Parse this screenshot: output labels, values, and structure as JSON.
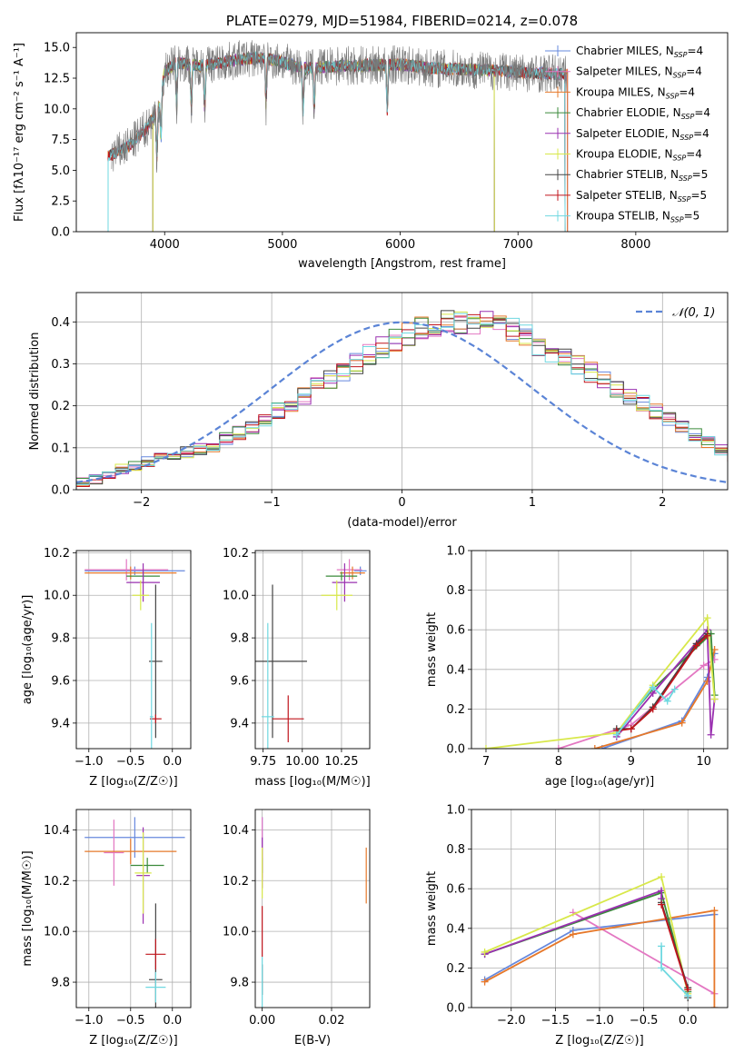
{
  "colors": {
    "Chabrier MILES": "#6688dd",
    "Salpeter MILES": "#e377c2",
    "Kroupa MILES": "#e6782a",
    "Chabrier ELODIE": "#3a8a3a",
    "Salpeter ELODIE": "#9a30b0",
    "Kroupa ELODIE": "#d8e84a",
    "Chabrier STELIB": "#444444",
    "Salpeter STELIB": "#c0141c",
    "Kroupa STELIB": "#6fd8e0",
    "normal": "#5b84d6"
  },
  "chart_data": [
    {
      "id": "spectrum",
      "type": "line",
      "title": "PLATE=0279, MJD=51984, FIBERID=0214, z=0.078",
      "xlabel": "wavelength [Angstrom, rest frame]",
      "ylabel": "Flux [fλ10⁻¹⁷ erg cm⁻² s⁻¹ A⁻¹]",
      "xlim": [
        3250,
        8780
      ],
      "ylim": [
        0,
        16.2
      ],
      "xticks": [
        4000,
        5000,
        6000,
        7000,
        8000
      ],
      "yticks": [
        0.0,
        2.5,
        5.0,
        7.5,
        10.0,
        12.5,
        15.0
      ],
      "legend": [
        "Chabrier MILES, N_SSP=4",
        "Salpeter MILES, N_SSP=4",
        "Kroupa MILES, N_SSP=4",
        "Chabrier ELODIE, N_SSP=4",
        "Salpeter ELODIE, N_SSP=4",
        "Kroupa ELODIE, N_SSP=4",
        "Chabrier STELIB, N_SSP=5",
        "Salpeter STELIB, N_SSP=5",
        "Kroupa STELIB, N_SSP=5"
      ],
      "legend_position": "right",
      "continuum": [
        [
          3550,
          6.2
        ],
        [
          3700,
          7.0
        ],
        [
          3850,
          8.5
        ],
        [
          3950,
          10.0
        ],
        [
          4000,
          13.0
        ],
        [
          4100,
          13.8
        ],
        [
          4300,
          13.5
        ],
        [
          4500,
          13.8
        ],
        [
          4800,
          14.2
        ],
        [
          5000,
          13.8
        ],
        [
          5200,
          13.3
        ],
        [
          5500,
          13.5
        ],
        [
          6000,
          13.6
        ],
        [
          6300,
          13.3
        ],
        [
          6600,
          13.2
        ],
        [
          7000,
          13.0
        ],
        [
          7400,
          12.8
        ]
      ],
      "model_ranges": [
        [
          3520,
          7420
        ],
        [
          3520,
          7420
        ],
        [
          3520,
          7420
        ],
        [
          3900,
          6800
        ],
        [
          3900,
          6800
        ],
        [
          3900,
          6800
        ],
        [
          3520,
          7400
        ],
        [
          3520,
          7400
        ],
        [
          3520,
          7400
        ]
      ],
      "data_range": [
        3550,
        7420
      ]
    },
    {
      "id": "residuals",
      "type": "area",
      "xlabel": "(data-model)/error",
      "ylabel": "Normed distribution",
      "xlim": [
        -2.5,
        2.5
      ],
      "ylim": [
        0,
        0.47
      ],
      "xticks": [
        -2,
        -1,
        0,
        1,
        2
      ],
      "yticks": [
        0.0,
        0.1,
        0.2,
        0.3,
        0.4
      ],
      "legend": "𝒩(0, 1)",
      "legend_position": "top-right",
      "bin_width": 0.1,
      "bin_start": -2.5,
      "histogram": [
        0.018,
        0.025,
        0.035,
        0.05,
        0.058,
        0.068,
        0.076,
        0.082,
        0.09,
        0.098,
        0.105,
        0.12,
        0.135,
        0.15,
        0.168,
        0.188,
        0.205,
        0.225,
        0.245,
        0.262,
        0.28,
        0.3,
        0.32,
        0.34,
        0.355,
        0.37,
        0.385,
        0.39,
        0.398,
        0.4,
        0.4,
        0.398,
        0.39,
        0.38,
        0.365,
        0.345,
        0.33,
        0.315,
        0.3,
        0.28,
        0.26,
        0.24,
        0.225,
        0.205,
        0.185,
        0.168,
        0.15,
        0.13,
        0.115,
        0.095,
        0.08,
        0.07,
        0.058,
        0.05,
        0.045,
        0.04,
        0.035,
        0.03,
        0.028,
        0.025
      ]
    },
    {
      "id": "age-vs-Z",
      "type": "scatter",
      "xlabel": "Z [log₁₀(Z/Z☉)]",
      "ylabel": "age  [log₁₀(age/yr)]",
      "xlim": [
        -1.15,
        0.22
      ],
      "ylim": [
        9.28,
        10.21
      ],
      "xticks": [
        -1.0,
        -0.5,
        0.0
      ],
      "yticks": [
        9.4,
        9.6,
        9.8,
        10.0,
        10.2
      ],
      "points": [
        {
          "model": "Chabrier MILES",
          "x": -0.45,
          "y": 10.115,
          "xerr": 0.6,
          "yerr": 0.02
        },
        {
          "model": "Salpeter MILES",
          "x": -0.55,
          "y": 10.12,
          "xerr": 0.5,
          "yerr": 0.05
        },
        {
          "model": "Kroupa MILES",
          "x": -0.5,
          "y": 10.105,
          "xerr": 0.55,
          "yerr": 0.03
        },
        {
          "model": "Chabrier ELODIE",
          "x": -0.35,
          "y": 10.09,
          "xerr": 0.2,
          "yerr": 0.02
        },
        {
          "model": "Salpeter ELODIE",
          "x": -0.35,
          "y": 10.06,
          "xerr": 0.2,
          "yerr": 0.09
        },
        {
          "model": "Kroupa ELODIE",
          "x": -0.38,
          "y": 10.0,
          "xerr": 0.1,
          "yerr": 0.07
        },
        {
          "model": "Chabrier STELIB",
          "x": -0.2,
          "y": 9.69,
          "xerr": 0.08,
          "yerr": 0.36
        },
        {
          "model": "Salpeter STELIB",
          "x": -0.2,
          "y": 9.42,
          "xerr": 0.07,
          "yerr": 0.02
        },
        {
          "model": "Kroupa STELIB",
          "x": -0.25,
          "y": 9.43,
          "xerr": 0.02,
          "yerr": 0.44
        }
      ]
    },
    {
      "id": "age-vs-mass",
      "type": "scatter",
      "xlabel": "mass [log₁₀(M/M☉)]",
      "ylabel": "",
      "xlim": [
        9.7,
        10.43
      ],
      "ylim": [
        9.28,
        10.21
      ],
      "xticks": [
        9.75,
        10.0,
        10.25
      ],
      "yticks": [
        9.4,
        9.6,
        9.8,
        10.0,
        10.2
      ],
      "points": [
        {
          "model": "Chabrier MILES",
          "x": 10.37,
          "y": 10.115,
          "xerr": 0.04,
          "yerr": 0.02
        },
        {
          "model": "Salpeter MILES",
          "x": 10.3,
          "y": 10.12,
          "xerr": 0.08,
          "yerr": 0.05
        },
        {
          "model": "Kroupa MILES",
          "x": 10.32,
          "y": 10.105,
          "xerr": 0.08,
          "yerr": 0.03
        },
        {
          "model": "Chabrier ELODIE",
          "x": 10.25,
          "y": 10.09,
          "xerr": 0.1,
          "yerr": 0.02
        },
        {
          "model": "Salpeter ELODIE",
          "x": 10.27,
          "y": 10.06,
          "xerr": 0.08,
          "yerr": 0.09
        },
        {
          "model": "Kroupa ELODIE",
          "x": 10.22,
          "y": 10.0,
          "xerr": 0.1,
          "yerr": 0.07
        },
        {
          "model": "Chabrier STELIB",
          "x": 9.81,
          "y": 9.69,
          "xerr": 0.22,
          "yerr": 0.36
        },
        {
          "model": "Salpeter STELIB",
          "x": 9.91,
          "y": 9.42,
          "xerr": 0.1,
          "yerr": 0.11
        },
        {
          "model": "Kroupa STELIB",
          "x": 9.78,
          "y": 9.43,
          "xerr": 0.04,
          "yerr": 0.44
        }
      ]
    },
    {
      "id": "massweight-vs-age",
      "type": "line",
      "xlabel": "age  [log₁₀(age/yr)]",
      "ylabel": "mass weight",
      "xlim": [
        6.8,
        10.33
      ],
      "ylim": [
        0,
        1.0
      ],
      "xticks": [
        7,
        8,
        9,
        10
      ],
      "yticks": [
        0.0,
        0.2,
        0.4,
        0.6,
        0.8,
        1.0
      ],
      "series": [
        {
          "model": "Chabrier MILES",
          "x": [
            8.6,
            9.7,
            10.05,
            10.15
          ],
          "y": [
            0.0,
            0.14,
            0.36,
            0.48
          ]
        },
        {
          "model": "Salpeter MILES",
          "x": [
            8.0,
            9.0,
            10.0,
            10.15
          ],
          "y": [
            0.0,
            0.12,
            0.42,
            0.45
          ]
        },
        {
          "model": "Kroupa MILES",
          "x": [
            8.5,
            9.7,
            10.05,
            10.15
          ],
          "y": [
            0.0,
            0.13,
            0.34,
            0.5
          ]
        },
        {
          "model": "Chabrier ELODIE",
          "x": [
            8.8,
            9.3,
            10.1,
            10.15
          ],
          "y": [
            0.08,
            0.3,
            0.58,
            0.27
          ]
        },
        {
          "model": "Salpeter ELODIE",
          "x": [
            8.8,
            9.3,
            10.05,
            10.1,
            10.15
          ],
          "y": [
            0.06,
            0.28,
            0.6,
            0.07,
            0.25
          ]
        },
        {
          "model": "Kroupa ELODIE",
          "x": [
            7.0,
            8.8,
            9.3,
            10.05,
            10.15
          ],
          "y": [
            0.0,
            0.08,
            0.32,
            0.66,
            0.25
          ]
        },
        {
          "model": "Chabrier STELIB",
          "x": [
            8.8,
            9.0,
            9.3,
            9.9,
            10.05
          ],
          "y": [
            0.1,
            0.1,
            0.21,
            0.53,
            0.58
          ]
        },
        {
          "model": "Salpeter STELIB",
          "x": [
            8.8,
            9.0,
            9.3,
            9.9,
            10.05
          ],
          "y": [
            0.09,
            0.1,
            0.2,
            0.52,
            0.57
          ]
        },
        {
          "model": "Kroupa STELIB",
          "x": [
            8.8,
            9.3,
            9.5,
            9.6
          ],
          "y": [
            0.07,
            0.31,
            0.24,
            0.3
          ]
        }
      ]
    },
    {
      "id": "mass-vs-Z",
      "type": "scatter",
      "xlabel": "Z [log₁₀(Z/Z☉)]",
      "ylabel": "mass [log₁₀(M/M☉)]",
      "xlim": [
        -1.15,
        0.22
      ],
      "ylim": [
        9.7,
        10.48
      ],
      "xticks": [
        -1.0,
        -0.5,
        0.0
      ],
      "yticks": [
        9.8,
        10.0,
        10.2,
        10.4
      ],
      "points": [
        {
          "model": "Chabrier MILES",
          "x": -0.45,
          "y": 10.37,
          "xerr": 0.6,
          "yerr": 0.08
        },
        {
          "model": "Salpeter MILES",
          "x": -0.7,
          "y": 10.31,
          "xerr": 0.12,
          "yerr": 0.13
        },
        {
          "model": "Kroupa MILES",
          "x": -0.5,
          "y": 10.315,
          "xerr": 0.55,
          "yerr": 0.05
        },
        {
          "model": "Chabrier ELODIE",
          "x": -0.3,
          "y": 10.26,
          "xerr": 0.2,
          "yerr": 0.03
        },
        {
          "model": "Salpeter ELODIE",
          "x": -0.35,
          "y": 10.22,
          "xerr": 0.08,
          "yerr": 0.19
        },
        {
          "model": "Kroupa ELODIE",
          "x": -0.35,
          "y": 10.23,
          "xerr": 0.1,
          "yerr": 0.16
        },
        {
          "model": "Chabrier STELIB",
          "x": -0.2,
          "y": 9.81,
          "xerr": 0.08,
          "yerr": 0.3
        },
        {
          "model": "Salpeter STELIB",
          "x": -0.2,
          "y": 9.91,
          "xerr": 0.12,
          "yerr": 0.06
        },
        {
          "model": "Kroupa STELIB",
          "x": -0.2,
          "y": 9.78,
          "xerr": 0.12,
          "yerr": 0.06
        }
      ]
    },
    {
      "id": "mass-vs-ebv",
      "type": "scatter",
      "xlabel": "E(B-V)",
      "ylabel": "",
      "xlim": [
        -0.002,
        0.031
      ],
      "ylim": [
        9.7,
        10.48
      ],
      "xticks": [
        0.0,
        0.02
      ],
      "yticks": [
        9.8,
        10.0,
        10.2,
        10.4
      ],
      "points": [
        {
          "model": "Chabrier MILES",
          "x": 0.0,
          "y": 10.37,
          "xerr": 0,
          "yerr": 0.08
        },
        {
          "model": "Salpeter MILES",
          "x": 0.0,
          "y": 10.33,
          "xerr": 0,
          "yerr": 0.12
        },
        {
          "model": "Kroupa MILES",
          "x": 0.03,
          "y": 10.22,
          "xerr": 0,
          "yerr": 0.11
        },
        {
          "model": "Chabrier ELODIE",
          "x": 0.0,
          "y": 10.26,
          "xerr": 0,
          "yerr": 0.03
        },
        {
          "model": "Salpeter ELODIE",
          "x": 0.0,
          "y": 10.27,
          "xerr": 0,
          "yerr": 0.1
        },
        {
          "model": "Kroupa ELODIE",
          "x": 0.0,
          "y": 10.23,
          "xerr": 0,
          "yerr": 0.1
        },
        {
          "model": "Chabrier STELIB",
          "x": 0.0,
          "y": 9.81,
          "xerr": 0,
          "yerr": 0.06
        },
        {
          "model": "Salpeter STELIB",
          "x": 0.0,
          "y": 10.0,
          "xerr": 0,
          "yerr": 0.1
        },
        {
          "model": "Kroupa STELIB",
          "x": 0.0,
          "y": 9.8,
          "xerr": 0,
          "yerr": 0.1
        }
      ]
    },
    {
      "id": "massweight-vs-Z",
      "type": "line",
      "xlabel": "Z [log₁₀(Z/Z☉)]",
      "ylabel": "mass weight",
      "xlim": [
        -2.45,
        0.45
      ],
      "ylim": [
        0,
        1.0
      ],
      "xticks": [
        -2.0,
        -1.5,
        -1.0,
        -0.5,
        0.0
      ],
      "yticks": [
        0.0,
        0.2,
        0.4,
        0.6,
        0.8,
        1.0
      ],
      "series": [
        {
          "model": "Chabrier MILES",
          "x": [
            -2.3,
            -1.3,
            0.3
          ],
          "y": [
            0.14,
            0.39,
            0.47
          ]
        },
        {
          "model": "Salpeter MILES",
          "x": [
            -1.3,
            0.3
          ],
          "y": [
            0.48,
            0.07
          ]
        },
        {
          "model": "Kroupa MILES",
          "x": [
            -2.3,
            -1.3,
            0.3,
            0.3
          ],
          "y": [
            0.13,
            0.37,
            0.49,
            0.0
          ]
        },
        {
          "model": "Chabrier ELODIE",
          "x": [
            -2.3,
            -0.3,
            0.0
          ],
          "y": [
            0.27,
            0.58,
            0.08
          ]
        },
        {
          "model": "Salpeter ELODIE",
          "x": [
            -2.3,
            -0.3,
            -0.3
          ],
          "y": [
            0.27,
            0.59,
            0.55
          ]
        },
        {
          "model": "Kroupa ELODIE",
          "x": [
            -2.3,
            -0.3,
            0.0
          ],
          "y": [
            0.28,
            0.66,
            0.07
          ]
        },
        {
          "model": "Chabrier STELIB",
          "x": [
            -0.3,
            0.0,
            0.0
          ],
          "y": [
            0.53,
            0.1,
            0.05
          ]
        },
        {
          "model": "Salpeter STELIB",
          "x": [
            -0.3,
            0.0
          ],
          "y": [
            0.52,
            0.09
          ]
        },
        {
          "model": "Kroupa STELIB",
          "x": [
            -0.3,
            -0.3,
            0.0
          ],
          "y": [
            0.31,
            0.2,
            0.06
          ]
        }
      ]
    }
  ]
}
